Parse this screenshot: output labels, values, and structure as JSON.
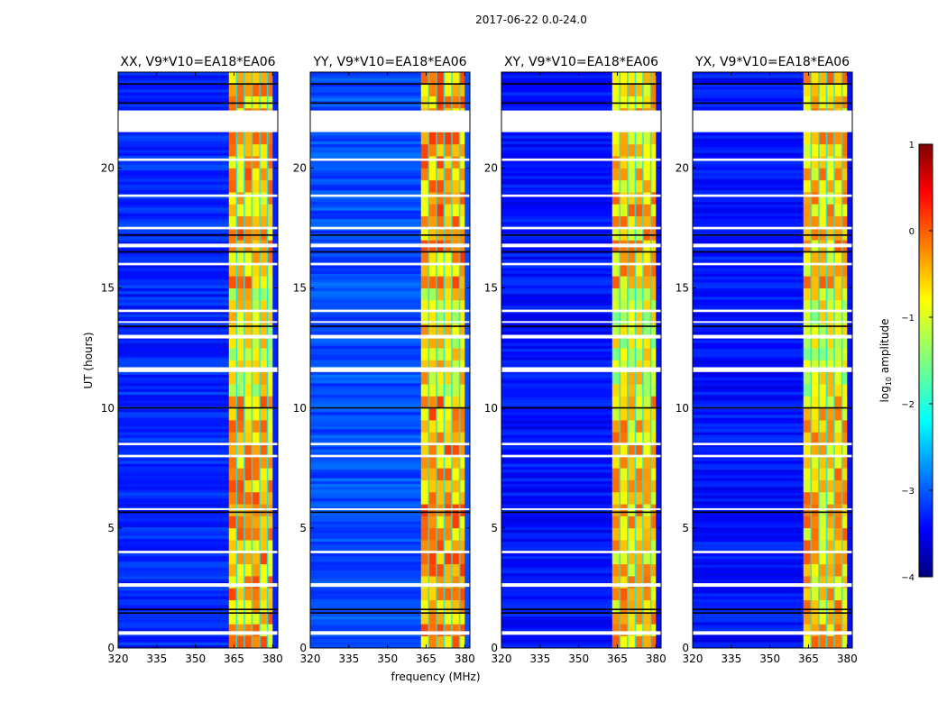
{
  "figure": {
    "suptitle": "2017-06-22 0.0-24.0",
    "xlabel": "frequency (MHz)",
    "ylabel": "UT (hours)",
    "colorbar_label_prefix": "log",
    "colorbar_label_sub": "10",
    "colorbar_label_suffix": " amplitude"
  },
  "chart_data": [
    {
      "type": "heatmap",
      "title": "XX, V9*V10=EA18*EA06",
      "xlabel": "",
      "ylabel": "UT (hours)",
      "xlim": [
        320,
        382
      ],
      "ylim": [
        0,
        24
      ],
      "xticks": [
        320,
        335,
        350,
        365,
        380
      ],
      "yticks": [
        0,
        5,
        10,
        15,
        20
      ],
      "colormap": "jet",
      "vmin": -4,
      "vmax": 1,
      "description_values": {
        "background_log_amp": -3.2,
        "band_MHz": [
          363,
          380
        ],
        "band_log_amp": -0.5
      }
    },
    {
      "type": "heatmap",
      "title": "YY, V9*V10=EA18*EA06",
      "xlabel": "frequency (MHz)",
      "ylabel": "",
      "xlim": [
        320,
        382
      ],
      "ylim": [
        0,
        24
      ],
      "xticks": [
        320,
        335,
        350,
        365,
        380
      ],
      "yticks": [
        0,
        5,
        10,
        15,
        20
      ],
      "colormap": "jet",
      "vmin": -4,
      "vmax": 1,
      "description_values": {
        "background_log_amp": -3.0,
        "band_MHz": [
          363,
          380
        ],
        "band_log_amp": -0.4
      }
    },
    {
      "type": "heatmap",
      "title": "XY, V9*V10=EA18*EA06",
      "xlabel": "",
      "ylabel": "",
      "xlim": [
        320,
        382
      ],
      "ylim": [
        0,
        24
      ],
      "xticks": [
        320,
        335,
        350,
        365,
        380
      ],
      "yticks": [
        0,
        5,
        10,
        15,
        20
      ],
      "colormap": "jet",
      "vmin": -4,
      "vmax": 1,
      "description_values": {
        "background_log_amp": -3.3,
        "band_MHz": [
          363,
          380
        ],
        "band_log_amp": -0.6
      }
    },
    {
      "type": "heatmap",
      "title": "YX, V9*V10=EA18*EA06",
      "xlabel": "",
      "ylabel": "",
      "xlim": [
        320,
        382
      ],
      "ylim": [
        0,
        24
      ],
      "xticks": [
        320,
        335,
        350,
        365,
        380
      ],
      "yticks": [
        0,
        5,
        10,
        15,
        20
      ],
      "colormap": "jet",
      "vmin": -4,
      "vmax": 1,
      "description_values": {
        "background_log_amp": -3.3,
        "band_MHz": [
          363,
          380
        ],
        "band_log_amp": -0.6
      }
    }
  ],
  "colorbar": {
    "ticks": [
      1,
      0,
      -1,
      -2,
      -3,
      -4
    ],
    "tick_labels": [
      "1",
      "0",
      "−1",
      "−2",
      "−3",
      "−4"
    ],
    "colormap": "jet"
  },
  "flagged_ut_hours": [
    [
      21.5,
      22.4
    ],
    [
      0.55,
      0.7
    ],
    [
      2.55,
      2.7
    ],
    [
      3.95,
      4.05
    ],
    [
      11.5,
      11.7
    ],
    [
      12.9,
      13.05
    ],
    [
      14.0,
      14.1
    ],
    [
      15.95,
      16.05
    ],
    [
      16.7,
      16.85
    ],
    [
      17.45,
      17.55
    ],
    [
      18.8,
      18.9
    ],
    [
      20.3,
      20.4
    ],
    [
      7.95,
      8.05
    ],
    [
      8.45,
      8.55
    ],
    [
      5.75,
      5.82
    ],
    [
      13.55,
      13.62
    ]
  ],
  "dark_ut_hours": [
    1.45,
    1.6,
    5.65,
    10.0,
    13.4,
    16.5,
    17.2,
    23.5,
    22.7
  ]
}
